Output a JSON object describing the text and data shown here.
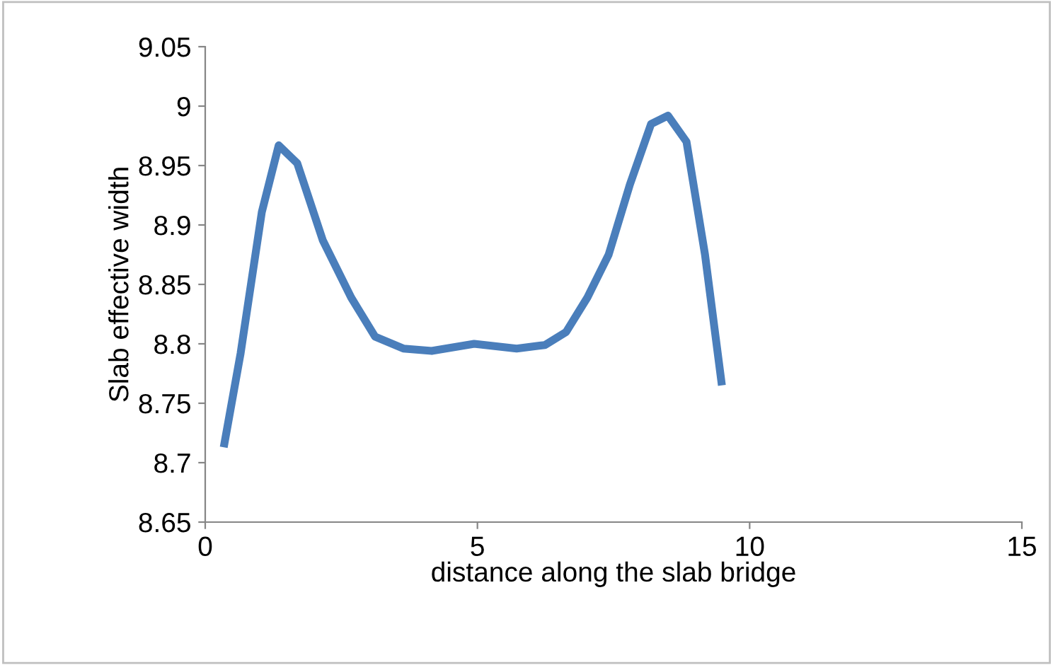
{
  "chart_data": {
    "type": "line",
    "xlabel": "distance along the slab bridge",
    "ylabel": "Slab effective width",
    "xlim": [
      0,
      15
    ],
    "xticks": [
      0,
      5,
      10,
      15
    ],
    "ylim": [
      8.65,
      9.05
    ],
    "yticks": [
      8.65,
      8.7,
      8.75,
      8.8,
      8.85,
      8.9,
      8.95,
      9,
      9.05
    ],
    "grid": false,
    "marker": "none",
    "line_style": "solid",
    "series": [
      {
        "color": "#4a7ebb",
        "x": [
          0.34,
          0.65,
          1.04,
          1.35,
          1.69,
          2.16,
          2.68,
          3.12,
          3.64,
          4.16,
          4.94,
          5.72,
          6.24,
          6.63,
          7.02,
          7.41,
          7.8,
          8.19,
          8.5,
          8.84,
          9.18,
          9.49
        ],
        "values": [
          8.713,
          8.792,
          8.911,
          8.967,
          8.952,
          8.887,
          8.839,
          8.806,
          8.796,
          8.794,
          8.8,
          8.796,
          8.799,
          8.81,
          8.839,
          8.875,
          8.934,
          8.985,
          8.992,
          8.97,
          8.875,
          8.765
        ]
      }
    ]
  }
}
